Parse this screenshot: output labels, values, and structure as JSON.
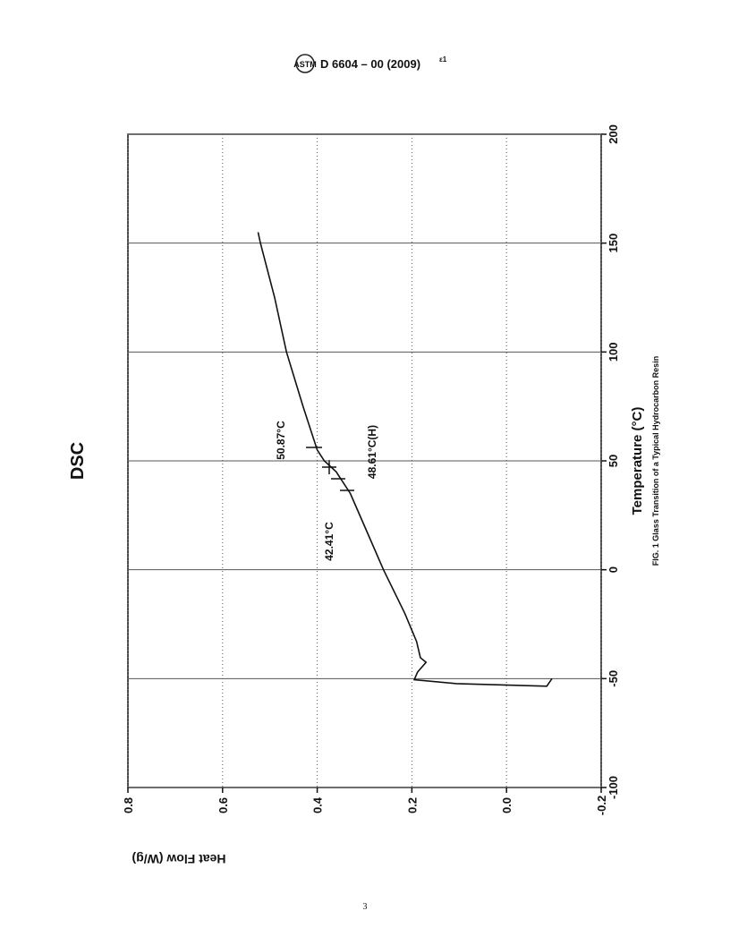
{
  "header": {
    "code": "D 6604 – 00 (2009)",
    "superscript": "ε1"
  },
  "chart_data": {
    "type": "line",
    "title": "DSC",
    "x_label": "Temperature (°C)",
    "y_label": "Heat Flow (W/g)",
    "x": [
      -50,
      -53.5,
      -52.3,
      -50.5,
      -47,
      -42.5,
      -40.4,
      -33,
      -20,
      0,
      20,
      35,
      45,
      50,
      55,
      75,
      100,
      125,
      150,
      155
    ],
    "values": [
      -0.096,
      -0.085,
      0.106,
      0.195,
      0.188,
      0.17,
      0.182,
      0.19,
      0.215,
      0.26,
      0.3,
      0.33,
      0.36,
      0.385,
      0.4,
      0.43,
      0.465,
      0.49,
      0.52,
      0.525
    ],
    "color": "#111111",
    "xlim": [
      -100,
      200
    ],
    "xticks": [
      -100,
      -50,
      0,
      50,
      100,
      150,
      200
    ],
    "ylim": [
      -0.2,
      0.8
    ],
    "yticks": [
      0.8,
      0.6,
      0.4,
      0.2,
      {
        "value": 0,
        "label": "0.0"
      },
      -0.2
    ],
    "grid": true,
    "annotations": [
      "50.87°C",
      "48.61°C(H)",
      "42.41°C"
    ]
  },
  "caption": "FIG. 1 Glass Transition of a Typical Hydrocarbon Resin",
  "page_number": "3"
}
